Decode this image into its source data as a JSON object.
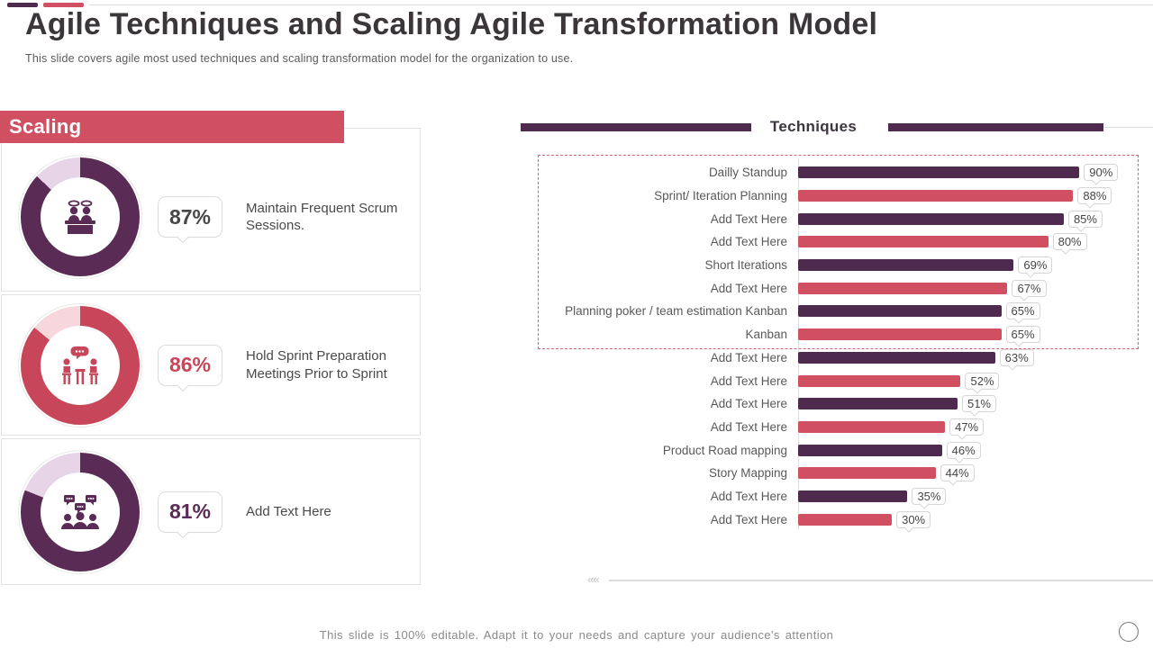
{
  "slide": {
    "title": "Agile Techniques and Scaling Agile Transformation Model",
    "subtitle": "This slide covers agile most used techniques and scaling transformation model for the organization to use.",
    "footer": "This slide is 100% editable. Adapt it to your needs and capture your audience's attention",
    "left_divider_chevrons": "«««"
  },
  "colors": {
    "purple_bar": "#4e2a4f",
    "red_bar": "#d05062",
    "donut_purple": "#5a2c55",
    "donut_purple_track": "#e7d4e6",
    "donut_red": "#c8465a",
    "donut_red_track": "#f7d6dc",
    "banner_red": "#d05062",
    "dashed_border": "#d4637a",
    "text_dark": "#3b363a",
    "text_gray": "#595959"
  },
  "scaling": {
    "header": "Scaling",
    "items": [
      {
        "percent_label": "87%",
        "value": 87,
        "description": "Maintain Frequent Scrum Sessions.",
        "icon": "podium-team-icon",
        "ring_color": "#5a2c55",
        "track_color": "#e7d4e6",
        "percent_color": "#474747"
      },
      {
        "percent_label": "86%",
        "value": 86,
        "description": "Hold Sprint Preparation Meetings Prior to Sprint",
        "icon": "sprint-meeting-icon",
        "ring_color": "#c8465a",
        "track_color": "#f7d6dc",
        "percent_color": "#c8465a"
      },
      {
        "percent_label": "81%",
        "value": 81,
        "description": "Add Text Here",
        "icon": "team-discussion-icon",
        "ring_color": "#5a2c55",
        "track_color": "#e7d4e6",
        "percent_color": "#5a2c55"
      }
    ]
  },
  "chart_data": {
    "type": "bar",
    "orientation": "horizontal",
    "title": "Techniques",
    "categories": [
      "Dailly Standup",
      "Sprint/ Iteration Planning",
      "Add Text Here",
      "Add Text Here",
      "Short Iterations",
      "Add Text Here",
      "Planning poker / team estimation Kanban",
      "Kanban",
      "Add Text Here",
      "Add Text Here",
      "Add Text Here",
      "Add Text Here",
      "Product Road mapping",
      "Story Mapping",
      "Add Text Here",
      "Add Text Here"
    ],
    "values": [
      90,
      88,
      85,
      80,
      69,
      67,
      65,
      65,
      63,
      52,
      51,
      47,
      46,
      44,
      35,
      30
    ],
    "value_labels": [
      "90%",
      "88%",
      "85%",
      "80%",
      "69%",
      "67%",
      "65%",
      "65%",
      "63%",
      "52%",
      "51%",
      "47%",
      "46%",
      "44%",
      "35%",
      "30%"
    ],
    "bar_color_pattern": [
      "#4e2a4f",
      "#d05062"
    ],
    "xlim": [
      0,
      100
    ],
    "grid": false,
    "legend": false,
    "dashed_highlight_rows": [
      1,
      8
    ],
    "value_label_style": "white chip with gray border and pointer"
  }
}
